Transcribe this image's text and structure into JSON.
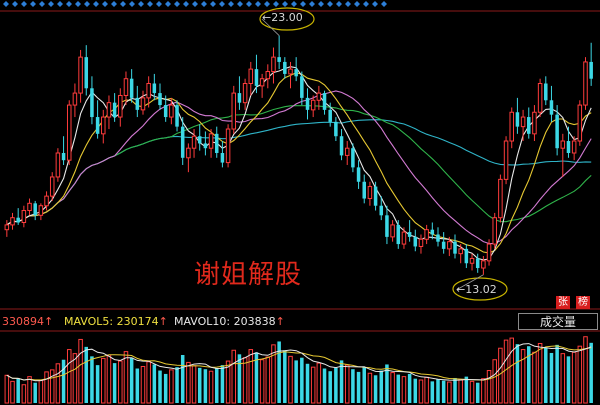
{
  "chart_data": {
    "type": "candlestick",
    "price": {
      "annotations": [
        {
          "label": "23.00",
          "value": 23.0,
          "kind": "high",
          "index": 48
        },
        {
          "label": "13.02",
          "value": 13.02,
          "kind": "low",
          "index": 84
        }
      ],
      "ylim": [
        12.3,
        23.9
      ],
      "candles": [
        [
          14.9,
          15.3,
          14.6,
          15.1
        ],
        [
          15.1,
          15.6,
          14.9,
          15.4
        ],
        [
          15.4,
          15.8,
          15.1,
          15.2
        ],
        [
          15.2,
          15.9,
          15.0,
          15.7
        ],
        [
          15.7,
          16.2,
          15.5,
          16.0
        ],
        [
          16.0,
          16.1,
          15.3,
          15.5
        ],
        [
          15.5,
          16.0,
          15.3,
          15.9
        ],
        [
          15.9,
          16.5,
          15.7,
          16.3
        ],
        [
          16.3,
          17.3,
          16.1,
          17.1
        ],
        [
          17.1,
          18.3,
          16.9,
          18.1
        ],
        [
          18.1,
          18.8,
          17.6,
          17.8
        ],
        [
          17.8,
          20.3,
          17.6,
          20.1
        ],
        [
          20.1,
          21.0,
          19.6,
          20.6
        ],
        [
          20.6,
          22.4,
          20.2,
          22.1
        ],
        [
          22.1,
          22.6,
          20.5,
          20.8
        ],
        [
          20.8,
          21.3,
          19.3,
          19.6
        ],
        [
          19.6,
          20.3,
          18.7,
          18.9
        ],
        [
          18.9,
          19.9,
          18.5,
          19.6
        ],
        [
          19.6,
          20.5,
          19.1,
          20.2
        ],
        [
          20.2,
          20.6,
          19.4,
          19.6
        ],
        [
          19.6,
          20.8,
          19.2,
          20.5
        ],
        [
          20.5,
          21.5,
          20.1,
          21.2
        ],
        [
          21.2,
          21.6,
          20.2,
          20.4
        ],
        [
          20.4,
          20.9,
          19.6,
          19.9
        ],
        [
          19.9,
          20.7,
          19.7,
          20.4
        ],
        [
          20.4,
          21.3,
          20.0,
          21.0
        ],
        [
          21.0,
          21.4,
          20.3,
          20.6
        ],
        [
          20.6,
          21.0,
          19.9,
          20.1
        ],
        [
          20.1,
          20.5,
          19.4,
          19.6
        ],
        [
          19.6,
          20.4,
          19.3,
          20.1
        ],
        [
          20.1,
          20.3,
          19.0,
          19.2
        ],
        [
          19.2,
          19.6,
          17.6,
          17.9
        ],
        [
          17.9,
          18.5,
          17.3,
          18.3
        ],
        [
          18.3,
          19.1,
          17.9,
          18.8
        ],
        [
          18.8,
          19.3,
          18.2,
          18.5
        ],
        [
          18.5,
          19.0,
          18.0,
          18.3
        ],
        [
          18.3,
          19.1,
          17.9,
          18.9
        ],
        [
          18.9,
          19.2,
          17.9,
          18.1
        ],
        [
          18.1,
          18.6,
          17.5,
          17.7
        ],
        [
          17.7,
          19.3,
          17.5,
          19.1
        ],
        [
          19.1,
          20.9,
          18.9,
          20.6
        ],
        [
          20.6,
          21.3,
          19.9,
          20.2
        ],
        [
          20.2,
          21.2,
          19.9,
          21.0
        ],
        [
          21.0,
          21.9,
          20.5,
          21.6
        ],
        [
          21.6,
          22.2,
          20.6,
          20.9
        ],
        [
          20.9,
          21.4,
          20.4,
          21.2
        ],
        [
          21.2,
          21.8,
          20.8,
          21.5
        ],
        [
          21.5,
          22.5,
          21.0,
          22.1
        ],
        [
          22.1,
          23.0,
          21.6,
          21.9
        ],
        [
          21.9,
          22.1,
          21.2,
          21.4
        ],
        [
          21.4,
          21.9,
          20.8,
          21.6
        ],
        [
          21.6,
          22.1,
          21.1,
          21.3
        ],
        [
          21.3,
          21.5,
          20.1,
          20.4
        ],
        [
          20.4,
          20.8,
          19.5,
          19.9
        ],
        [
          19.9,
          20.5,
          19.6,
          20.3
        ],
        [
          20.3,
          20.9,
          19.9,
          20.6
        ],
        [
          20.6,
          20.7,
          19.7,
          19.9
        ],
        [
          19.9,
          20.2,
          19.2,
          19.4
        ],
        [
          19.4,
          19.6,
          18.6,
          18.8
        ],
        [
          18.8,
          19.1,
          17.8,
          18.0
        ],
        [
          18.0,
          18.6,
          17.6,
          18.3
        ],
        [
          18.3,
          18.5,
          17.3,
          17.5
        ],
        [
          17.5,
          17.8,
          16.6,
          16.9
        ],
        [
          16.9,
          17.2,
          16.0,
          16.2
        ],
        [
          16.2,
          16.9,
          15.9,
          16.7
        ],
        [
          16.7,
          16.9,
          15.7,
          15.9
        ],
        [
          15.9,
          16.3,
          15.3,
          15.5
        ],
        [
          15.5,
          15.9,
          14.3,
          14.6
        ],
        [
          14.6,
          15.3,
          14.4,
          15.1
        ],
        [
          15.1,
          15.3,
          14.1,
          14.3
        ],
        [
          14.3,
          15.0,
          14.1,
          14.8
        ],
        [
          14.8,
          15.3,
          14.4,
          14.6
        ],
        [
          14.6,
          14.9,
          14.0,
          14.2
        ],
        [
          14.2,
          14.7,
          13.9,
          14.5
        ],
        [
          14.5,
          15.1,
          14.3,
          14.9
        ],
        [
          14.9,
          15.2,
          14.5,
          14.7
        ],
        [
          14.7,
          15.0,
          14.2,
          14.4
        ],
        [
          14.4,
          14.8,
          13.9,
          14.1
        ],
        [
          14.1,
          14.6,
          13.8,
          14.4
        ],
        [
          14.4,
          14.7,
          13.7,
          13.9
        ],
        [
          13.9,
          14.3,
          13.5,
          14.1
        ],
        [
          14.1,
          14.3,
          13.3,
          13.5
        ],
        [
          13.5,
          13.9,
          13.2,
          13.7
        ],
        [
          13.7,
          13.9,
          13.1,
          13.3
        ],
        [
          13.3,
          13.8,
          13.02,
          13.6
        ],
        [
          13.6,
          14.5,
          13.4,
          14.3
        ],
        [
          14.3,
          15.6,
          14.1,
          15.4
        ],
        [
          15.4,
          17.2,
          15.2,
          17.0
        ],
        [
          17.0,
          18.8,
          16.8,
          18.6
        ],
        [
          18.6,
          20.0,
          18.3,
          19.8
        ],
        [
          19.8,
          20.4,
          18.9,
          19.2
        ],
        [
          19.2,
          19.9,
          18.6,
          19.6
        ],
        [
          19.6,
          20.0,
          18.7,
          18.9
        ],
        [
          18.9,
          20.1,
          18.6,
          19.8
        ],
        [
          19.8,
          21.2,
          19.6,
          21.0
        ],
        [
          21.0,
          21.3,
          20.1,
          20.3
        ],
        [
          20.3,
          20.9,
          19.4,
          19.7
        ],
        [
          19.7,
          20.1,
          18.0,
          18.3
        ],
        [
          18.3,
          18.9,
          17.1,
          18.6
        ],
        [
          18.6,
          19.2,
          17.9,
          18.1
        ],
        [
          18.1,
          18.8,
          17.8,
          18.6
        ],
        [
          18.6,
          20.3,
          18.4,
          20.1
        ],
        [
          20.1,
          22.1,
          19.9,
          21.9
        ],
        [
          21.9,
          22.7,
          20.9,
          21.2
        ]
      ]
    },
    "volume": {
      "values": [
        4.1,
        3.2,
        3.6,
        2.7,
        3.9,
        3.0,
        3.4,
        4.6,
        4.9,
        5.8,
        6.4,
        7.9,
        7.3,
        9.4,
        8.3,
        6.9,
        5.6,
        6.6,
        7.1,
        5.9,
        6.2,
        7.6,
        6.7,
        5.1,
        5.4,
        6.1,
        5.7,
        4.8,
        4.3,
        4.9,
        5.3,
        7.1,
        6.0,
        5.5,
        5.2,
        5.0,
        4.7,
        5.1,
        5.6,
        6.2,
        7.8,
        7.2,
        6.7,
        7.9,
        7.5,
        6.4,
        6.8,
        8.6,
        9.1,
        7.8,
        6.9,
        6.3,
        6.7,
        5.8,
        5.3,
        5.9,
        5.1,
        4.7,
        5.2,
        6.3,
        5.6,
        5.0,
        4.6,
        5.3,
        4.4,
        4.1,
        4.8,
        5.7,
        4.5,
        4.2,
        3.9,
        4.3,
        3.6,
        3.4,
        3.8,
        3.2,
        3.5,
        3.3,
        3.1,
        3.7,
        3.4,
        3.9,
        3.2,
        3.0,
        3.6,
        4.8,
        6.4,
        8.1,
        9.3,
        9.6,
        8.7,
        7.9,
        8.4,
        7.5,
        8.8,
        8.2,
        7.4,
        8.6,
        7.3,
        6.9,
        7.5,
        8.4,
        9.8,
        8.9
      ],
      "ylim": [
        0,
        10.5
      ]
    },
    "ma_colors": {
      "ma5": "#e8e8e8",
      "ma10": "#e6c832",
      "ma20": "#d27ad2",
      "ma30": "#2fb34a",
      "ma60": "#2fb4c8"
    },
    "colors": {
      "up": "#ff3c3c",
      "down": "#3cd8e6",
      "vol_ma5": "#e8e8e8",
      "vol_ma10": "#e6c832"
    }
  },
  "annotations": {
    "high_label": "23.00",
    "low_label": "13.02",
    "arrow": "←"
  },
  "watermark": "谢姐解股",
  "volume_panel": {
    "current_value": "330894",
    "mavol5_label": "MAVOL5:",
    "mavol5_value": "230174",
    "mavol10_label": "MAVOL10:",
    "mavol10_value": "203838",
    "arrow": "↑",
    "indicator_tab": "成交量"
  },
  "badges": {
    "zhang": "张",
    "bang": "榜"
  }
}
